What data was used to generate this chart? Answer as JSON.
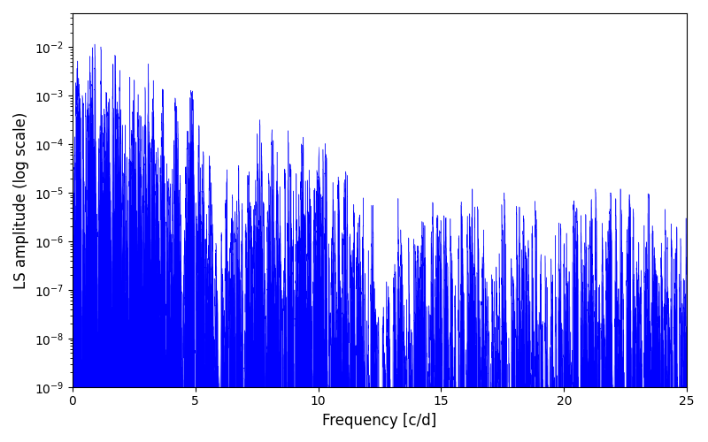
{
  "title": "",
  "xlabel": "Frequency [c/d]",
  "ylabel": "LS amplitude (log scale)",
  "xlim": [
    0,
    25
  ],
  "ylim": [
    1e-09,
    0.05
  ],
  "line_color": "blue",
  "background_color": "#ffffff",
  "figsize": [
    8.0,
    5.0
  ],
  "dpi": 100,
  "freq_max": 25.0,
  "n_points": 100000,
  "seed": 42
}
